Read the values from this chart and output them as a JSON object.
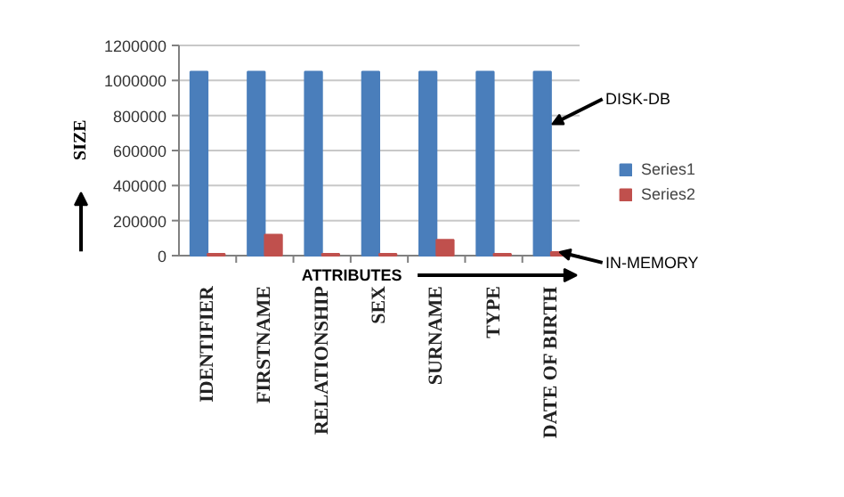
{
  "chart_data": {
    "type": "bar",
    "xlabel": "ATTRIBUTES",
    "ylabel": "SIZE",
    "categories": [
      "IDENTIFIER",
      "FIRSTNAME",
      "RELATIONSHIP",
      "SEX",
      "SURNAME",
      "TYPE",
      "DATE OF BIRTH"
    ],
    "series": [
      {
        "name": "Series1",
        "color": "#4a7ebb",
        "values": [
          1050000,
          1050000,
          1050000,
          1050000,
          1050000,
          1050000,
          1050000
        ]
      },
      {
        "name": "Series2",
        "color": "#c0504d",
        "values": [
          10000,
          120000,
          10000,
          10000,
          90000,
          10000,
          20000
        ]
      }
    ],
    "ylim": [
      0,
      1200000
    ],
    "yticks": [
      0,
      200000,
      400000,
      600000,
      800000,
      1000000,
      1200000
    ],
    "grid": "y",
    "legend": "right",
    "annotations": [
      {
        "text": "DISK-DB",
        "x": "DATE OF BIRTH",
        "y": 750000
      },
      {
        "text": "IN-MEMORY",
        "x": "DATE OF BIRTH",
        "y": 20000
      }
    ]
  }
}
